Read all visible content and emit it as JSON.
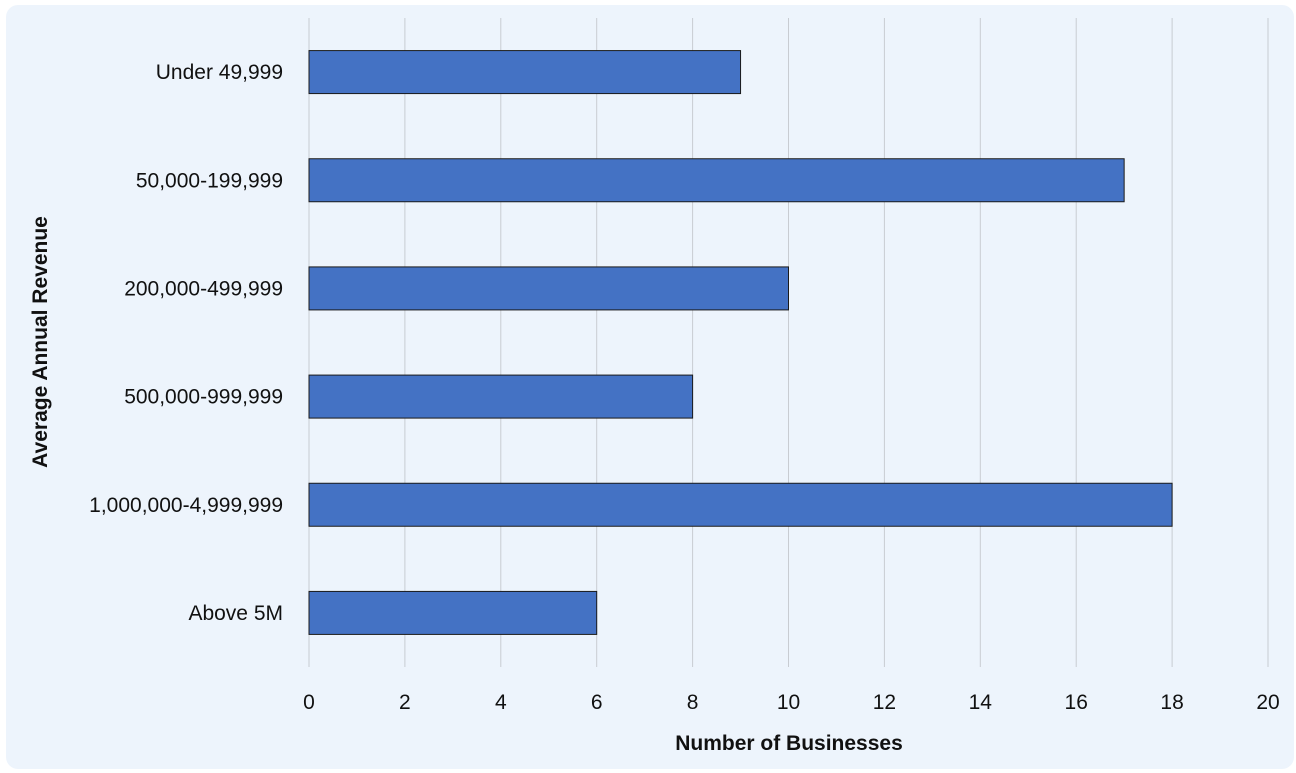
{
  "chart_data": {
    "type": "bar",
    "orientation": "horizontal",
    "categories": [
      "Under 49,999",
      "50,000-199,999",
      "200,000-499,999",
      "500,000-999,999",
      "1,000,000-4,999,999",
      "Above 5M"
    ],
    "values": [
      9,
      17,
      10,
      8,
      18,
      6
    ],
    "xlabel": "Number of Businesses",
    "ylabel": "Average Annual Revenue",
    "xlim": [
      0,
      20
    ],
    "xticks": [
      "0",
      "2",
      "4",
      "6",
      "8",
      "10",
      "12",
      "14",
      "16",
      "18",
      "20"
    ],
    "grid": "vertical",
    "bar_color": "#4472c4",
    "bar_edge_color": "#1a1a1a",
    "background_color": "#edf4fc",
    "grid_color": "#c8ccd2"
  }
}
